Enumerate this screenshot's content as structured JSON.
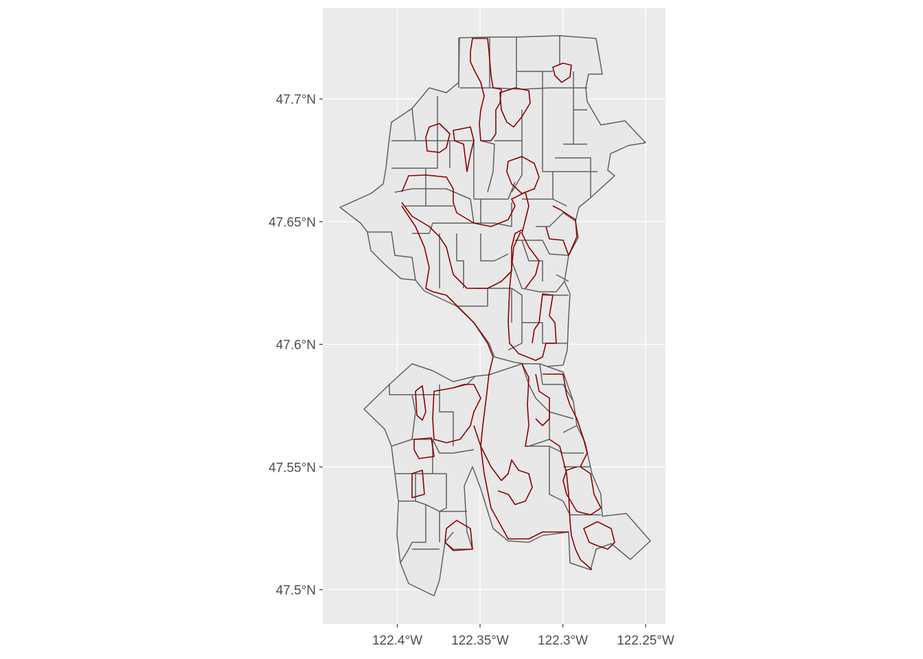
{
  "map": {
    "title": "",
    "x_axis": {
      "label": "",
      "unit": "degrees West longitude",
      "range": [
        -122.445,
        -122.238
      ],
      "ticks": [
        {
          "value": -122.4,
          "label": "122.4°W"
        },
        {
          "value": -122.35,
          "label": "122.35°W"
        },
        {
          "value": -122.3,
          "label": "122.3°W"
        },
        {
          "value": -122.25,
          "label": "122.25°W"
        }
      ]
    },
    "y_axis": {
      "label": "",
      "unit": "degrees North latitude",
      "range": [
        47.486,
        47.737
      ],
      "ticks": [
        {
          "value": 47.5,
          "label": "47.5°N"
        },
        {
          "value": 47.55,
          "label": "47.55°N"
        },
        {
          "value": 47.6,
          "label": "47.6°N"
        },
        {
          "value": 47.65,
          "label": "47.65°N"
        },
        {
          "value": 47.7,
          "label": "47.7°N"
        }
      ]
    },
    "layers": [
      {
        "name": "grey census-tract polygons",
        "fill": "#e8e8e8",
        "stroke": "#5f5f5f"
      },
      {
        "name": "dark-red highlighted zone outlines",
        "fill": "none",
        "stroke": "#8b0000"
      }
    ],
    "colors": {
      "panel_background": "#ebebeb",
      "grid": "#ffffff",
      "polygon_fill": "#e8e8e8",
      "polygon_stroke": "#5f5f5f",
      "highlight_stroke": "#8b0000"
    },
    "grid": true
  }
}
